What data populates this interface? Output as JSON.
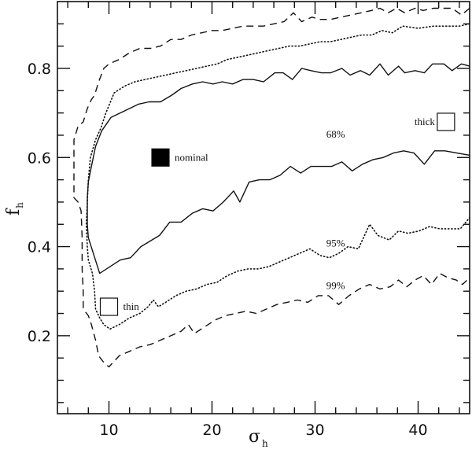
{
  "chart_data": {
    "type": "line",
    "title": "",
    "xlabel": "σ_h",
    "ylabel": "f_h",
    "xlim": [
      5,
      45
    ],
    "ylim": [
      0.025,
      0.95
    ],
    "grid": false,
    "legend": "none (inline annotations)",
    "x_ticks": [
      10,
      20,
      30,
      40
    ],
    "y_ticks": [
      0.2,
      0.4,
      0.6,
      0.8
    ],
    "x_minor_step": 2,
    "y_minor_step": 0.05,
    "series": [
      {
        "name": "68%",
        "style": "solid",
        "points": [
          [
            45.0,
            0.805
          ],
          [
            44.2,
            0.81
          ],
          [
            43.3,
            0.795
          ],
          [
            42.5,
            0.81
          ],
          [
            41.4,
            0.81
          ],
          [
            40.6,
            0.79
          ],
          [
            39.7,
            0.795
          ],
          [
            38.7,
            0.79
          ],
          [
            38.1,
            0.805
          ],
          [
            37.1,
            0.785
          ],
          [
            36.3,
            0.81
          ],
          [
            35.3,
            0.785
          ],
          [
            34.4,
            0.795
          ],
          [
            33.4,
            0.785
          ],
          [
            32.6,
            0.8
          ],
          [
            31.5,
            0.79
          ],
          [
            30.6,
            0.79
          ],
          [
            29.6,
            0.795
          ],
          [
            28.7,
            0.8
          ],
          [
            27.8,
            0.775
          ],
          [
            26.9,
            0.79
          ],
          [
            26.1,
            0.79
          ],
          [
            25.0,
            0.77
          ],
          [
            24.0,
            0.775
          ],
          [
            23.0,
            0.775
          ],
          [
            22.0,
            0.765
          ],
          [
            21.0,
            0.77
          ],
          [
            20.1,
            0.765
          ],
          [
            19.1,
            0.77
          ],
          [
            18.1,
            0.765
          ],
          [
            17.0,
            0.755
          ],
          [
            16.1,
            0.74
          ],
          [
            15.0,
            0.725
          ],
          [
            13.9,
            0.725
          ],
          [
            12.9,
            0.72
          ],
          [
            11.1,
            0.7
          ],
          [
            10.2,
            0.69
          ],
          [
            9.3,
            0.66
          ],
          [
            8.7,
            0.625
          ],
          [
            8.3,
            0.58
          ],
          [
            8.0,
            0.545
          ],
          [
            7.9,
            0.51
          ],
          [
            7.9,
            0.45
          ],
          [
            8.0,
            0.42
          ],
          [
            9.1,
            0.34
          ],
          [
            11.1,
            0.37
          ],
          [
            12.1,
            0.375
          ],
          [
            13.1,
            0.4
          ],
          [
            14.9,
            0.425
          ],
          [
            15.9,
            0.455
          ],
          [
            17.0,
            0.455
          ],
          [
            18.1,
            0.475
          ],
          [
            19.1,
            0.485
          ],
          [
            20.1,
            0.48
          ],
          [
            21.1,
            0.5
          ],
          [
            22.1,
            0.525
          ],
          [
            22.7,
            0.5
          ],
          [
            23.6,
            0.545
          ],
          [
            24.6,
            0.55
          ],
          [
            25.6,
            0.55
          ],
          [
            26.6,
            0.56
          ],
          [
            27.6,
            0.58
          ],
          [
            28.6,
            0.565
          ],
          [
            29.6,
            0.58
          ],
          [
            31.6,
            0.58
          ],
          [
            32.6,
            0.59
          ],
          [
            33.6,
            0.57
          ],
          [
            34.6,
            0.585
          ],
          [
            35.6,
            0.595
          ],
          [
            36.6,
            0.6
          ],
          [
            37.6,
            0.61
          ],
          [
            38.6,
            0.615
          ],
          [
            39.6,
            0.61
          ],
          [
            40.6,
            0.585
          ],
          [
            41.6,
            0.615
          ],
          [
            42.6,
            0.615
          ],
          [
            45.0,
            0.605
          ]
        ]
      },
      {
        "name": "95%",
        "style": "dotted",
        "points": [
          [
            45.0,
            0.9
          ],
          [
            44.0,
            0.895
          ],
          [
            43.0,
            0.895
          ],
          [
            41.5,
            0.895
          ],
          [
            40.0,
            0.89
          ],
          [
            38.5,
            0.895
          ],
          [
            37.5,
            0.88
          ],
          [
            36.5,
            0.885
          ],
          [
            35.5,
            0.875
          ],
          [
            34.5,
            0.875
          ],
          [
            33.5,
            0.87
          ],
          [
            32.5,
            0.865
          ],
          [
            31.5,
            0.86
          ],
          [
            30.5,
            0.86
          ],
          [
            29.5,
            0.855
          ],
          [
            28.5,
            0.85
          ],
          [
            27.5,
            0.85
          ],
          [
            26.5,
            0.845
          ],
          [
            25.5,
            0.84
          ],
          [
            24.5,
            0.835
          ],
          [
            23.5,
            0.83
          ],
          [
            22.5,
            0.825
          ],
          [
            21.5,
            0.82
          ],
          [
            20.5,
            0.81
          ],
          [
            19.5,
            0.805
          ],
          [
            18.5,
            0.8
          ],
          [
            17.5,
            0.795
          ],
          [
            16.5,
            0.79
          ],
          [
            15.5,
            0.785
          ],
          [
            14.5,
            0.78
          ],
          [
            13.5,
            0.775
          ],
          [
            12.5,
            0.77
          ],
          [
            11.5,
            0.76
          ],
          [
            10.5,
            0.745
          ],
          [
            9.7,
            0.7
          ],
          [
            9.2,
            0.665
          ],
          [
            8.7,
            0.64
          ],
          [
            8.2,
            0.6
          ],
          [
            8.0,
            0.55
          ],
          [
            7.9,
            0.5
          ],
          [
            7.8,
            0.45
          ],
          [
            7.9,
            0.4
          ],
          [
            8.0,
            0.37
          ],
          [
            8.4,
            0.34
          ],
          [
            8.6,
            0.3
          ],
          [
            8.7,
            0.26
          ],
          [
            9.1,
            0.24
          ],
          [
            9.5,
            0.225
          ],
          [
            10.1,
            0.215
          ],
          [
            11.0,
            0.225
          ],
          [
            12.0,
            0.24
          ],
          [
            13.0,
            0.25
          ],
          [
            13.8,
            0.265
          ],
          [
            14.3,
            0.28
          ],
          [
            14.8,
            0.265
          ],
          [
            15.5,
            0.275
          ],
          [
            16.5,
            0.29
          ],
          [
            17.5,
            0.3
          ],
          [
            18.5,
            0.305
          ],
          [
            19.5,
            0.315
          ],
          [
            20.5,
            0.32
          ],
          [
            21.5,
            0.335
          ],
          [
            22.5,
            0.345
          ],
          [
            23.5,
            0.35
          ],
          [
            24.5,
            0.35
          ],
          [
            25.5,
            0.355
          ],
          [
            26.5,
            0.365
          ],
          [
            27.5,
            0.375
          ],
          [
            28.5,
            0.385
          ],
          [
            29.5,
            0.395
          ],
          [
            30.5,
            0.38
          ],
          [
            31.4,
            0.375
          ],
          [
            32.3,
            0.385
          ],
          [
            33.2,
            0.4
          ],
          [
            34.2,
            0.395
          ],
          [
            35.3,
            0.45
          ],
          [
            36.1,
            0.425
          ],
          [
            37.2,
            0.415
          ],
          [
            38.1,
            0.435
          ],
          [
            39.0,
            0.43
          ],
          [
            40.1,
            0.435
          ],
          [
            41.1,
            0.445
          ],
          [
            42.1,
            0.44
          ],
          [
            43.2,
            0.44
          ],
          [
            44.1,
            0.44
          ],
          [
            45.0,
            0.465
          ]
        ]
      },
      {
        "name": "99%",
        "style": "dashed",
        "points": [
          [
            45.0,
            0.935
          ],
          [
            44.2,
            0.92
          ],
          [
            43.3,
            0.935
          ],
          [
            42.5,
            0.935
          ],
          [
            41.5,
            0.935
          ],
          [
            40.5,
            0.93
          ],
          [
            39.7,
            0.935
          ],
          [
            38.7,
            0.925
          ],
          [
            37.9,
            0.935
          ],
          [
            37.1,
            0.925
          ],
          [
            36.3,
            0.935
          ],
          [
            35.5,
            0.93
          ],
          [
            34.5,
            0.925
          ],
          [
            33.5,
            0.92
          ],
          [
            32.5,
            0.915
          ],
          [
            31.5,
            0.91
          ],
          [
            30.5,
            0.91
          ],
          [
            29.7,
            0.915
          ],
          [
            28.7,
            0.905
          ],
          [
            27.9,
            0.925
          ],
          [
            27.0,
            0.905
          ],
          [
            26.0,
            0.9
          ],
          [
            25.0,
            0.895
          ],
          [
            24.0,
            0.895
          ],
          [
            23.0,
            0.895
          ],
          [
            22.0,
            0.89
          ],
          [
            21.0,
            0.885
          ],
          [
            20.0,
            0.885
          ],
          [
            19.0,
            0.88
          ],
          [
            18.0,
            0.875
          ],
          [
            17.0,
            0.865
          ],
          [
            16.0,
            0.865
          ],
          [
            15.0,
            0.85
          ],
          [
            14.0,
            0.845
          ],
          [
            13.0,
            0.845
          ],
          [
            12.0,
            0.835
          ],
          [
            11.0,
            0.82
          ],
          [
            10.0,
            0.81
          ],
          [
            9.5,
            0.8
          ],
          [
            9.0,
            0.77
          ],
          [
            8.6,
            0.74
          ],
          [
            8.3,
            0.73
          ],
          [
            7.9,
            0.71
          ],
          [
            7.5,
            0.68
          ],
          [
            7.0,
            0.67
          ],
          [
            6.6,
            0.64
          ],
          [
            6.6,
            0.55
          ],
          [
            6.6,
            0.51
          ],
          [
            7.0,
            0.5
          ],
          [
            7.3,
            0.48
          ],
          [
            7.4,
            0.42
          ],
          [
            7.4,
            0.35
          ],
          [
            7.5,
            0.3
          ],
          [
            7.5,
            0.26
          ],
          [
            8.0,
            0.245
          ],
          [
            8.3,
            0.225
          ],
          [
            8.7,
            0.19
          ],
          [
            9.0,
            0.155
          ],
          [
            9.5,
            0.14
          ],
          [
            10.0,
            0.13
          ],
          [
            11.0,
            0.155
          ],
          [
            12.0,
            0.165
          ],
          [
            13.0,
            0.175
          ],
          [
            14.0,
            0.18
          ],
          [
            15.0,
            0.19
          ],
          [
            16.0,
            0.2
          ],
          [
            17.0,
            0.21
          ],
          [
            17.7,
            0.225
          ],
          [
            18.3,
            0.205
          ],
          [
            19.3,
            0.22
          ],
          [
            20.3,
            0.235
          ],
          [
            21.3,
            0.245
          ],
          [
            22.3,
            0.25
          ],
          [
            23.3,
            0.255
          ],
          [
            24.3,
            0.25
          ],
          [
            25.3,
            0.26
          ],
          [
            26.3,
            0.27
          ],
          [
            27.3,
            0.275
          ],
          [
            28.3,
            0.28
          ],
          [
            29.3,
            0.275
          ],
          [
            30.3,
            0.29
          ],
          [
            31.3,
            0.29
          ],
          [
            32.3,
            0.27
          ],
          [
            33.3,
            0.29
          ],
          [
            34.3,
            0.305
          ],
          [
            35.3,
            0.315
          ],
          [
            36.3,
            0.305
          ],
          [
            37.3,
            0.31
          ],
          [
            38.1,
            0.325
          ],
          [
            38.9,
            0.31
          ],
          [
            39.7,
            0.325
          ],
          [
            40.5,
            0.335
          ],
          [
            41.3,
            0.315
          ],
          [
            42.1,
            0.34
          ],
          [
            42.9,
            0.33
          ],
          [
            43.7,
            0.325
          ],
          [
            44.3,
            0.315
          ],
          [
            45.0,
            0.33
          ]
        ]
      }
    ],
    "markers": [
      {
        "label": "nominal",
        "x": 15.0,
        "y": 0.6,
        "fill": "#000000",
        "label_side": "right"
      },
      {
        "label": "thin",
        "x": 10.0,
        "y": 0.265,
        "fill": "#ffffff",
        "label_side": "right"
      },
      {
        "label": "thick",
        "x": 42.7,
        "y": 0.68,
        "fill": "#ffffff",
        "label_side": "left"
      }
    ],
    "annotations": [
      {
        "text": "68%",
        "x": 32.0,
        "y": 0.645
      },
      {
        "text": "95%",
        "x": 32.0,
        "y": 0.4
      },
      {
        "text": "99%",
        "x": 32.0,
        "y": 0.305
      }
    ]
  },
  "axes": {
    "x_tick_labels": [
      "10",
      "20",
      "30",
      "40"
    ],
    "y_tick_labels": [
      "0.2",
      "0.4",
      "0.6",
      "0.8"
    ],
    "xlabel_main": "σ",
    "xlabel_sub": "h",
    "ylabel_main": "f",
    "ylabel_sub": "h"
  }
}
